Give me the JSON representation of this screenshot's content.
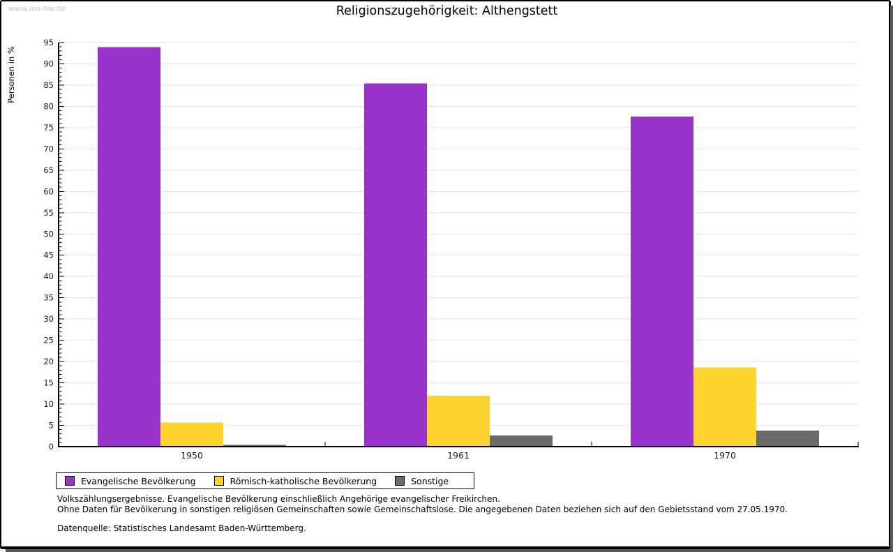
{
  "watermark": "www.leo-bw.de",
  "chart_data": {
    "type": "bar",
    "title": "Religionszugehörigkeit: Althengstett",
    "ylabel": "Personen in %",
    "xlabel": "",
    "ylim": [
      0,
      95
    ],
    "ytick_step": 5,
    "yminor_step": 1,
    "grid": true,
    "legend_position": "bottom",
    "categories": [
      "1950",
      "1961",
      "1970"
    ],
    "series": [
      {
        "name": "Evangelische Bevölkerung",
        "color": "#9933cc",
        "values": [
          93.9,
          85.4,
          77.6
        ]
      },
      {
        "name": "Römisch-katholische Bevölkerung",
        "color": "#fcd42d",
        "values": [
          5.7,
          12.0,
          18.6
        ]
      },
      {
        "name": "Sonstige",
        "color": "#6b6b6b",
        "values": [
          0.4,
          2.6,
          3.8
        ]
      }
    ],
    "axis_color": "#000000",
    "grid_color": "#e3e3e3",
    "tick_label_color": "#1a1a1a"
  },
  "footnotes": {
    "line1": "Volkszählungsergebnisse. Evangelische Bevölkerung einschließlich Angehörige evangelischer Freikirchen.",
    "line2": "Ohne Daten für Bevölkerung in sonstigen religiösen Gemeinschaften sowie Gemeinschaftslose. Die angegebenen Daten beziehen sich auf den Gebietsstand vom 27.05.1970.",
    "source": "Datenquelle: Statistisches Landesamt Baden-Württemberg."
  }
}
